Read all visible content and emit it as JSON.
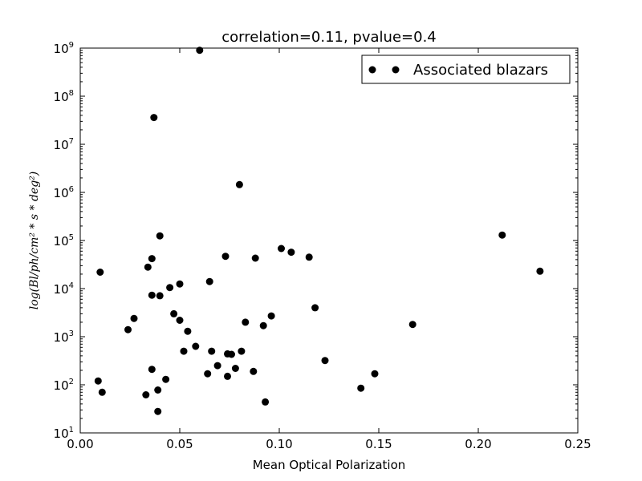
{
  "chart_data": {
    "type": "scatter",
    "title": "correlation=0.11, pvalue=0.4",
    "xlabel": "Mean Optical Polarization",
    "ylabel": "log(Bl/ph/cm² * s * deg²)",
    "xlim": [
      0.0,
      0.25
    ],
    "ylim": [
      10,
      1000000000
    ],
    "yscale": "log",
    "x_ticks": [
      "0.00",
      "0.05",
      "0.10",
      "0.15",
      "0.20",
      "0.25"
    ],
    "y_tick_exponents": [
      "1",
      "2",
      "3",
      "4",
      "5",
      "6",
      "7",
      "8",
      "9"
    ],
    "y_tick_base": "10",
    "grid": false,
    "legend_position": "top-right",
    "series": [
      {
        "name": "Associated blazars",
        "color": "#000000",
        "marker": "circle",
        "x": [
          0.009,
          0.01,
          0.011,
          0.024,
          0.027,
          0.033,
          0.034,
          0.036,
          0.036,
          0.036,
          0.037,
          0.039,
          0.039,
          0.04,
          0.04,
          0.043,
          0.045,
          0.047,
          0.05,
          0.05,
          0.052,
          0.054,
          0.058,
          0.06,
          0.064,
          0.065,
          0.066,
          0.069,
          0.073,
          0.074,
          0.074,
          0.076,
          0.078,
          0.08,
          0.081,
          0.083,
          0.087,
          0.088,
          0.092,
          0.093,
          0.096,
          0.101,
          0.106,
          0.115,
          0.118,
          0.123,
          0.141,
          0.148,
          0.167,
          0.212,
          0.231
        ],
        "y": [
          120,
          22000,
          70,
          1400,
          2400,
          62,
          28000,
          42000,
          7300,
          210,
          36000000,
          28,
          78,
          7100,
          125000,
          130,
          10500,
          3000,
          12500,
          2200,
          500,
          1300,
          630,
          900000000,
          170,
          14000,
          500,
          250,
          47000,
          440,
          150,
          430,
          220,
          1450000,
          500,
          2000,
          190,
          43000,
          1700,
          44,
          2700,
          68000,
          57000,
          45000,
          4000,
          320,
          85,
          170,
          1800,
          130000,
          23000
        ]
      }
    ]
  }
}
